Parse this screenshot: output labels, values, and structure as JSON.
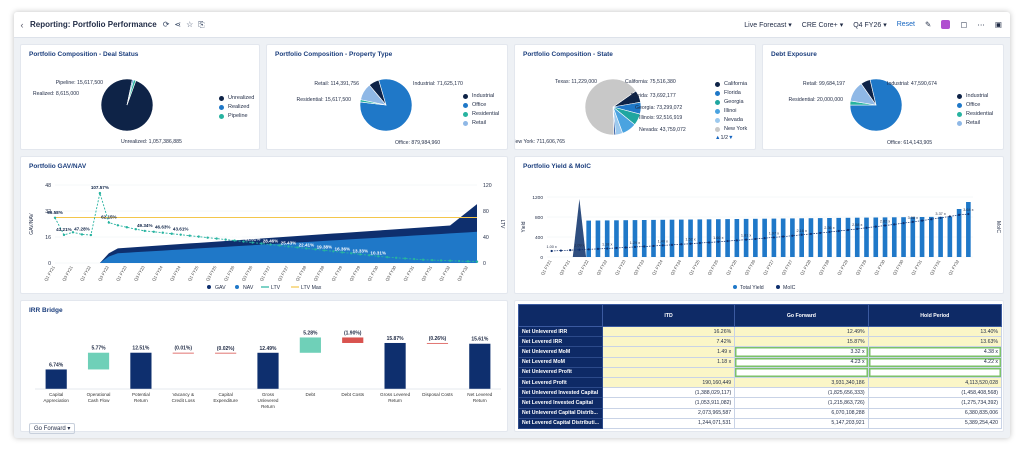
{
  "header": {
    "title": "Reporting: Portfolio Performance",
    "forecast": "Live Forecast",
    "scenario": "CRE Core+",
    "period": "Q4 FY26",
    "reset": "Reset"
  },
  "deal_status": {
    "title": "Portfolio Composition - Deal Status",
    "labels": [
      "Pipeline: 15,617,500",
      "Realized: 8,615,000",
      "Unrealized: 1,057,386,885"
    ],
    "legend": [
      "Unrealized",
      "Realized",
      "Pipeline"
    ],
    "chart_data": {
      "type": "pie",
      "categories": [
        "Unrealized",
        "Realized",
        "Pipeline"
      ],
      "values": [
        1057386885,
        8615000,
        15617500
      ],
      "colors": [
        "#0e2347",
        "#1f78c8",
        "#27b3a0"
      ]
    }
  },
  "property_type": {
    "title": "Portfolio Composition - Property Type",
    "labels": [
      "Retail: 114,391,756",
      "Industrial: 71,625,170",
      "Residential: 15,617,500",
      "Office: 879,984,960"
    ],
    "legend": [
      "Industrial",
      "Office",
      "Residential",
      "Retail"
    ],
    "chart_data": {
      "type": "pie",
      "categories": [
        "Industrial",
        "Office",
        "Residential",
        "Retail"
      ],
      "values": [
        71625170,
        879984960,
        15617500,
        114391756
      ],
      "colors": [
        "#0e2347",
        "#1f78c8",
        "#27b3a0",
        "#8fb8e6"
      ]
    }
  },
  "state": {
    "title": "Portfolio Composition - State",
    "labels": [
      "Texas: 11,229,000",
      "California: 75,516,380",
      "Florida: 73,692,177",
      "Georgia: 73,299,072",
      "Illinois: 92,516,919",
      "Nevada: 43,759,072",
      "New York: 711,606,765"
    ],
    "legend": [
      "California",
      "Florida",
      "Georgia",
      "Illinoi",
      "Nevada",
      "New York"
    ],
    "pager": "1/2",
    "chart_data": {
      "type": "pie",
      "categories": [
        "California",
        "Florida",
        "Georgia",
        "Illinois",
        "Nevada",
        "Texas",
        "New York"
      ],
      "values": [
        75516380,
        73692177,
        73299072,
        92516919,
        43759072,
        11229000,
        711606765
      ],
      "colors": [
        "#0e2347",
        "#1f78c8",
        "#1fa6a0",
        "#4aa3e0",
        "#9cc9ee",
        "#1f4f9e",
        "#c8c8c8"
      ]
    }
  },
  "debt": {
    "title": "Debt Exposure",
    "labels": [
      "Retail: 99,684,197",
      "Industrial: 47,590,674",
      "Residential: 20,000,000",
      "Office: 614,143,905"
    ],
    "legend": [
      "Industrial",
      "Office",
      "Residential",
      "Retail"
    ],
    "chart_data": {
      "type": "pie",
      "categories": [
        "Industrial",
        "Office",
        "Residential",
        "Retail"
      ],
      "values": [
        47590674,
        614143905,
        20000000,
        99684197
      ],
      "colors": [
        "#0e2347",
        "#1f78c8",
        "#27b3a0",
        "#8fb8e6"
      ]
    }
  },
  "gav": {
    "title": "Portfolio GAV/NAV",
    "y_left_label": "GAV/NAV",
    "y_right_label": "LTV",
    "left_ticks": [
      "48",
      "32",
      "16",
      "0"
    ],
    "right_ticks": [
      "120",
      "80",
      "40",
      "0"
    ],
    "legend": [
      "GAV",
      "NAV",
      "LTV",
      "LTV Max"
    ],
    "ltv_labels": [
      "69.58%",
      "43.21%",
      "47.28%",
      "107.57%",
      "62.15%",
      "49.34%",
      "46.63%",
      "43.61%",
      "40.58%",
      "37.56%",
      "34.53%",
      "31.51%",
      "28.46%",
      "25.43%",
      "22.41%",
      "19.38%",
      "16.36%",
      "13.33%",
      "10.31%"
    ],
    "chart_data": {
      "type": "area",
      "ylim": [
        0,
        48
      ],
      "y2lim": [
        0,
        120
      ],
      "series": [
        {
          "name": "GAV"
        },
        {
          "name": "NAV"
        },
        {
          "name": "LTV"
        },
        {
          "name": "LTV Max",
          "value": 70
        }
      ]
    }
  },
  "yield": {
    "title": "Portfolio Yield & MoIC",
    "y_left_label": "Yield",
    "y_right_label": "MoIC",
    "left_ticks": [
      "1200",
      "800",
      "400",
      "0"
    ],
    "legend": [
      "Total Yield",
      "MoIC"
    ],
    "moic_labels": [
      "1.00 x",
      "1.03 x",
      "1.06 x",
      "1.09 x",
      "1.12 x",
      "1.15 x",
      "1.18 x",
      "1.22 x",
      "1.25 x",
      "1.29 x",
      "1.32 x",
      "1.36 x",
      "1.40 x",
      "1.44 x",
      "1.48 x",
      "1.52 x",
      "1.57 x",
      "1.61 x",
      "1.66 x",
      "1.71 x",
      "1.76 x",
      "1.81 x",
      "1.86 x",
      "1.92 x",
      "1.97 x",
      "2.03 x",
      "2.09 x",
      "2.16 x",
      "2.22 x",
      "2.29 x",
      "2.36 x",
      "2.43 x",
      "2.50 x",
      "2.58 x",
      "2.66 x",
      "2.74 x",
      "2.82 x",
      "2.90 x",
      "2.99 x",
      "3.08 x",
      "3.17 x",
      "3.27 x",
      "3.37 x",
      "3.47 x",
      "3.58 x",
      "3.64 x"
    ],
    "chart_data": {
      "type": "bar",
      "ylim": [
        0,
        1200
      ],
      "series": [
        {
          "name": "Total Yield"
        },
        {
          "name": "MoIC"
        }
      ]
    }
  },
  "irr": {
    "title": "IRR Bridge",
    "button": "Go Forward",
    "chart_data": {
      "type": "bar",
      "categories": [
        "Capital Appreciation",
        "Operational Cash Flow",
        "Potential Return",
        "Vacancy & Credit Loss",
        "Capital Expenditure",
        "Gross Unlevered Return",
        "Debt",
        "Debt Costs",
        "Gross Levered Return",
        "Disposal Costs",
        "Net Levered Return"
      ],
      "values": [
        6.74,
        5.77,
        12.51,
        -0.01,
        -0.02,
        12.49,
        5.28,
        -1.9,
        15.87,
        -0.26,
        15.61
      ],
      "value_labels": [
        "6.74%",
        "5.77%",
        "12.51%",
        "(0.01%)",
        "(0.02%)",
        "12.49%",
        "5.28%",
        "(1.90%)",
        "15.87%",
        "(0.26%)",
        "15.61%"
      ],
      "kinds": [
        "total",
        "up",
        "total",
        "down",
        "down",
        "total",
        "up",
        "down",
        "total",
        "down",
        "total"
      ],
      "ylim": [
        0,
        20
      ]
    }
  },
  "table": {
    "columns": [
      "",
      "ITD",
      "Go Forward",
      "Hold Period"
    ],
    "rows": [
      [
        "Net Unlevered IRR",
        "16.26%",
        "12.49%",
        "13.40%"
      ],
      [
        "Net Levered IRR",
        "7.42%",
        "15.87%",
        "13.63%"
      ],
      [
        "Net Unlevered MoM",
        "1.49 x",
        "3.32 x",
        "4.38 x"
      ],
      [
        "Net Levered MoM",
        "1.18 x",
        "4.23 x",
        "4.22 x"
      ],
      [
        "Net Unlevered Profit",
        "",
        "",
        ""
      ],
      [
        "Net Levered Profit",
        "190,160,449",
        "3,931,340,186",
        "4,113,520,028"
      ],
      [
        "Net Unlevered Invested Capital",
        "(1,388,029,117)",
        "(1,825,656,333)",
        "(1,458,408,568)"
      ],
      [
        "Net Levered Invested Capital",
        "(1,053,911,082)",
        "(1,215,863,726)",
        "(1,275,734,392)"
      ],
      [
        "Net Unlevered Capital Distrib...",
        "2,073,965,587",
        "6,070,108,288",
        "6,380,835,006"
      ],
      [
        "Net Levered Capital Distributi...",
        "1,244,071,531",
        "5,147,203,921",
        "5,389,254,420"
      ]
    ]
  }
}
